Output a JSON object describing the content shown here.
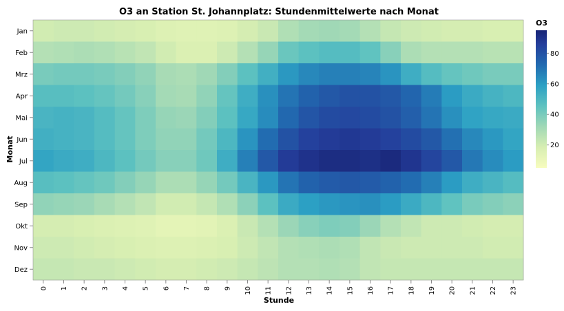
{
  "chart_data": {
    "type": "heatmap",
    "title": "O3 an Station St. Johannplatz: Stundenmittelwerte nach Monat",
    "xlabel": "Stunde",
    "ylabel": "Monat",
    "x_categories": [
      "0",
      "1",
      "2",
      "3",
      "4",
      "5",
      "6",
      "7",
      "8",
      "9",
      "10",
      "11",
      "12",
      "13",
      "14",
      "15",
      "16",
      "17",
      "18",
      "19",
      "20",
      "21",
      "22",
      "23"
    ],
    "y_categories": [
      "Jan",
      "Feb",
      "Mrz",
      "Apr",
      "Mai",
      "Jun",
      "Jul",
      "Aug",
      "Sep",
      "Okt",
      "Nov",
      "Dez"
    ],
    "values": [
      [
        20,
        21,
        21,
        20,
        19,
        18,
        16,
        15,
        15,
        16,
        19,
        22,
        28,
        31,
        32,
        31,
        27,
        23,
        21,
        20,
        19,
        19,
        18,
        18
      ],
      [
        27,
        28,
        29,
        28,
        26,
        24,
        20,
        17,
        17,
        21,
        27,
        34,
        43,
        46,
        48,
        48,
        45,
        37,
        29,
        27,
        27,
        27,
        26,
        26
      ],
      [
        40,
        41,
        41,
        40,
        38,
        35,
        30,
        29,
        32,
        38,
        46,
        53,
        61,
        65,
        67,
        67,
        66,
        62,
        54,
        48,
        44,
        42,
        40,
        40
      ],
      [
        47,
        47,
        46,
        44,
        41,
        37,
        31,
        30,
        35,
        44,
        54,
        63,
        70,
        75,
        78,
        80,
        80,
        78,
        74,
        68,
        60,
        55,
        52,
        50
      ],
      [
        51,
        52,
        51,
        48,
        44,
        39,
        34,
        33,
        38,
        46,
        56,
        64,
        73,
        79,
        82,
        83,
        82,
        80,
        76,
        70,
        63,
        58,
        56,
        55
      ],
      [
        53,
        52,
        51,
        48,
        44,
        39,
        35,
        35,
        41,
        50,
        62,
        72,
        80,
        85,
        87,
        88,
        87,
        85,
        82,
        78,
        71,
        65,
        61,
        57
      ],
      [
        57,
        55,
        54,
        50,
        46,
        41,
        37,
        37,
        42,
        54,
        67,
        78,
        87,
        90,
        92,
        92,
        91,
        93,
        89,
        84,
        78,
        69,
        64,
        60
      ],
      [
        47,
        46,
        44,
        42,
        38,
        34,
        29,
        29,
        34,
        41,
        51,
        61,
        70,
        75,
        77,
        78,
        77,
        75,
        72,
        67,
        60,
        54,
        51,
        48
      ],
      [
        35,
        34,
        33,
        30,
        27,
        24,
        20,
        20,
        23,
        28,
        36,
        46,
        55,
        59,
        61,
        62,
        63,
        60,
        55,
        50,
        45,
        40,
        38,
        36
      ],
      [
        19,
        19,
        18,
        17,
        16,
        15,
        13,
        13,
        14,
        17,
        22,
        27,
        33,
        37,
        39,
        38,
        33,
        27,
        24,
        21,
        21,
        20,
        19,
        19
      ],
      [
        21,
        21,
        20,
        19,
        18,
        17,
        16,
        16,
        17,
        18,
        21,
        24,
        27,
        28,
        29,
        28,
        24,
        22,
        21,
        21,
        21,
        21,
        20,
        20
      ],
      [
        23,
        23,
        22,
        22,
        21,
        20,
        19,
        19,
        20,
        21,
        23,
        25,
        27,
        27,
        28,
        27,
        24,
        23,
        23,
        23,
        23,
        23,
        23,
        23
      ]
    ],
    "colorbar": {
      "label": "O3",
      "ticks": [
        20,
        40,
        60,
        80
      ],
      "range": [
        5,
        95
      ]
    },
    "colormap": "YlGnBu",
    "legend_position": "right"
  }
}
